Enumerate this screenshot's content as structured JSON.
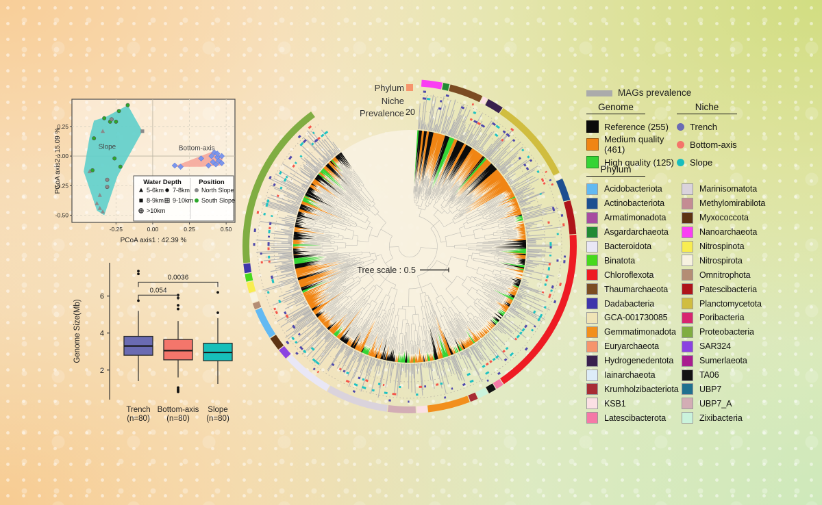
{
  "ring_labels": {
    "phylum": "Phylum",
    "niche": "Niche",
    "prevalence": "Prevalence",
    "prevalence_tick": "20",
    "marker_color": "#F6946C"
  },
  "legend_panel": {
    "mags_prevalence": {
      "label": "MAGs prevalence",
      "swatch": "#ABABAB"
    },
    "genome": {
      "title": "Genome",
      "items": [
        {
          "label": "Reference (255)",
          "color": "#0b0b0b"
        },
        {
          "label": "Medium quality (461)",
          "color": "#F08514"
        },
        {
          "label": "High quality (125)",
          "color": "#35D435"
        }
      ]
    },
    "niche": {
      "title": "Niche",
      "items": [
        {
          "label": "Trench",
          "color": "#6B6BB4"
        },
        {
          "label": "Bottom-axis",
          "color": "#F4756A"
        },
        {
          "label": "Slope",
          "color": "#19BDBD"
        }
      ]
    },
    "phylum": {
      "title": "Phylum",
      "columns": [
        [
          {
            "label": "Acidobacteriota",
            "color": "#62B9F2"
          },
          {
            "label": "Actinobacteriota",
            "color": "#1D4F90"
          },
          {
            "label": "Armatimonadota",
            "color": "#A74BA0"
          },
          {
            "label": "Asgardarchaeota",
            "color": "#218A34"
          },
          {
            "label": "Bacteroidota",
            "color": "#E9E7F6"
          },
          {
            "label": "Binatota",
            "color": "#47D91D"
          },
          {
            "label": "Chloroflexota",
            "color": "#EE1B23"
          },
          {
            "label": "Thaumarchaeota",
            "color": "#7B4C22"
          },
          {
            "label": "Dadabacteria",
            "color": "#3E35AB"
          },
          {
            "label": "GCA-001730085",
            "color": "#F0E4B6"
          },
          {
            "label": "Gemmatimonadota",
            "color": "#F28F1D"
          },
          {
            "label": "Euryarchaeota",
            "color": "#F6946C"
          },
          {
            "label": "Hydrogenedentota",
            "color": "#39204E"
          },
          {
            "label": "Iainarchaeota",
            "color": "#DDECF8"
          },
          {
            "label": "Krumholzibacteriota",
            "color": "#A72C34"
          },
          {
            "label": "KSB1",
            "color": "#FBE0E4"
          },
          {
            "label": "Latescibacterota",
            "color": "#F579A7"
          }
        ],
        [
          {
            "label": "Marinisomatota",
            "color": "#DAD3DC"
          },
          {
            "label": "Methylomirabilota",
            "color": "#C48C93"
          },
          {
            "label": "Myxococcota",
            "color": "#5D3312"
          },
          {
            "label": "Nanoarchaeota",
            "color": "#FA3EF3"
          },
          {
            "label": "Nitrospinota",
            "color": "#F8ED50"
          },
          {
            "label": "Nitrospirota",
            "color": "#F7F2E0"
          },
          {
            "label": "Omnitrophota",
            "color": "#B48D74"
          },
          {
            "label": "Patescibacteria",
            "color": "#AE141A"
          },
          {
            "label": "Planctomycetota",
            "color": "#D0BD40"
          },
          {
            "label": "Poribacteria",
            "color": "#D7256F"
          },
          {
            "label": "Proteobacteria",
            "color": "#80AD42"
          },
          {
            "label": "SAR324",
            "color": "#8B42E1"
          },
          {
            "label": "Sumerlaeota",
            "color": "#A91D8F"
          },
          {
            "label": "TA06",
            "color": "#131313"
          },
          {
            "label": "UBP7",
            "color": "#20708F"
          },
          {
            "label": "UBP7_A",
            "color": "#D3ADB5"
          },
          {
            "label": "Zixibacteria",
            "color": "#CAF3DC"
          }
        ]
      ]
    }
  },
  "chart_data": [
    {
      "id": "pcoa",
      "type": "scatter",
      "xlabel": "PCoA axis1 : 42.39 %",
      "ylabel": "PCoA axis2 : 15.09 %",
      "xlim": [
        -0.55,
        0.56
      ],
      "ylim": [
        -0.56,
        0.48
      ],
      "xticks": [
        -0.25,
        0.0,
        0.25,
        0.5
      ],
      "yticks": [
        0.25,
        0.0,
        -0.25,
        -0.5
      ],
      "hulls": [
        {
          "name": "Slope",
          "color": "#5ECFCB",
          "opacity": 0.9,
          "label_xy": [
            -0.31,
            0.06
          ],
          "points": [
            [
              -0.17,
              0.43
            ],
            [
              -0.07,
              0.21
            ],
            [
              -0.24,
              -0.17
            ],
            [
              -0.33,
              -0.5
            ],
            [
              -0.38,
              -0.46
            ],
            [
              -0.47,
              -0.13
            ],
            [
              -0.43,
              0.16
            ],
            [
              -0.4,
              0.3
            ],
            [
              -0.32,
              0.33
            ]
          ]
        },
        {
          "name": "Bottom-axis",
          "color": "#F5A79B",
          "opacity": 0.9,
          "label_xy": [
            0.3,
            0.05
          ],
          "points": [
            [
              0.14,
              -0.09
            ],
            [
              0.41,
              0.04
            ],
            [
              0.48,
              -0.01
            ],
            [
              0.46,
              -0.08
            ],
            [
              0.33,
              -0.09
            ]
          ]
        }
      ],
      "series": [
        {
          "name": "South Slope",
          "color": "#2BA82B",
          "points": [
            [
              -0.17,
              0.43,
              "c"
            ],
            [
              -0.23,
              0.38,
              "c"
            ],
            [
              -0.33,
              0.32,
              "c"
            ],
            [
              -0.29,
              0.29,
              "c"
            ],
            [
              -0.4,
              0.15,
              "c"
            ],
            [
              -0.26,
              -0.02,
              "c"
            ],
            [
              -0.22,
              -0.09,
              "c"
            ],
            [
              -0.41,
              -0.12,
              "c"
            ],
            [
              -0.25,
              0.29,
              "c"
            ]
          ]
        },
        {
          "name": "North Slope",
          "color": "#8A8A8A",
          "points": [
            [
              -0.28,
              0.31,
              "c"
            ],
            [
              -0.34,
              0.21,
              "t"
            ],
            [
              -0.31,
              -0.2,
              "c"
            ],
            [
              -0.31,
              -0.26,
              "c"
            ],
            [
              -0.36,
              -0.33,
              "t"
            ],
            [
              -0.38,
              -0.4,
              "t"
            ],
            [
              -0.36,
              -0.44,
              "t"
            ],
            [
              -0.34,
              -0.47,
              "t"
            ],
            [
              -0.43,
              -0.13,
              "t"
            ],
            [
              -0.07,
              0.21,
              "s"
            ]
          ]
        },
        {
          "name": "Bottom-axis",
          "color": "#7B96EC",
          "points": [
            [
              0.15,
              -0.08,
              "d"
            ],
            [
              0.19,
              -0.09,
              "d"
            ],
            [
              0.33,
              -0.02,
              "d"
            ],
            [
              0.4,
              0.0,
              "d"
            ],
            [
              0.42,
              0.03,
              "d"
            ],
            [
              0.44,
              -0.01,
              "d"
            ],
            [
              0.45,
              -0.04,
              "d"
            ],
            [
              0.47,
              0.0,
              "d"
            ],
            [
              0.47,
              -0.06,
              "d"
            ],
            [
              0.43,
              -0.07,
              "d"
            ],
            [
              0.38,
              -0.08,
              "d"
            ],
            [
              0.41,
              -0.05,
              "d"
            ],
            [
              0.44,
              0.02,
              "d"
            ]
          ]
        }
      ],
      "legend": {
        "water_depth": {
          "title": "Water Depth",
          "col1": [
            {
              "label": "5-6km",
              "marker": "t"
            },
            {
              "label": "8-9km",
              "marker": "s"
            },
            {
              "label": ">10km",
              "marker": "cc"
            }
          ],
          "col2": [
            {
              "label": "7-8km",
              "marker": "c"
            },
            {
              "label": "9-10km",
              "marker": "sc"
            }
          ]
        },
        "position": {
          "title": "Position",
          "items": [
            {
              "label": "North Slope",
              "color": "#8A8A8A"
            },
            {
              "label": "South Slope",
              "color": "#2BA82B"
            }
          ]
        }
      }
    },
    {
      "id": "genome-size-boxplot",
      "type": "box",
      "ylabel": "Genome Size(Mb)",
      "yticks": [
        2,
        4,
        6
      ],
      "ylim": [
        0.4,
        7.8
      ],
      "boxes": [
        {
          "label": "Trench",
          "n": "(n=80)",
          "color": "#6A6BB2",
          "q1": 2.8,
          "median": 3.3,
          "q3": 3.82,
          "lo": 1.4,
          "hi": 5.2,
          "outliers": [
            5.75,
            7.2,
            7.35
          ]
        },
        {
          "label": "Bottom-axis",
          "n": "(n=80)",
          "color": "#F4766B",
          "q1": 2.55,
          "median": 3.05,
          "q3": 3.65,
          "lo": 1.6,
          "hi": 4.65,
          "outliers": [
            5.3,
            5.5,
            5.9,
            6.05,
            1.05,
            0.97,
            0.9,
            0.82
          ]
        },
        {
          "label": "Slope",
          "n": "(n=80)",
          "color": "#17BFB9",
          "q1": 2.5,
          "median": 2.95,
          "q3": 3.45,
          "lo": 1.25,
          "hi": 4.8,
          "outliers": [
            5.1,
            6.2
          ]
        }
      ],
      "comparisons": [
        {
          "a": 0,
          "b": 1,
          "p": "0.054",
          "y": 6.05
        },
        {
          "a": 0,
          "b": 2,
          "p": "0.0036",
          "y": 6.75
        }
      ]
    },
    {
      "id": "phylogenetic-tree",
      "type": "circular_phylogenetic_tree",
      "scale_label": "Tree scale : 0.5",
      "prevalence_axis_tick": 20,
      "genome_counts": {
        "reference": 255,
        "medium_quality": 461,
        "high_quality": 125
      },
      "quality_colors": {
        "reference": "#0b0b0b",
        "medium": "#F08514",
        "high": "#35D435"
      },
      "prevalence_color": "#B3B3B3",
      "branch_color": "#BFBDB6",
      "niche_dash_colors": {
        "trench": "#4E48AC",
        "bottom_axis": "#F4564A",
        "slope": "#1FC2C2"
      },
      "rings_outward": [
        "genome quality wedges",
        "MAGs prevalence bars",
        "niche dashes",
        "phylum arcs"
      ],
      "phylum_ring": [
        {
          "phylum": "Nanoarchaeota",
          "deg": 7.5
        },
        {
          "phylum": "Asgardarchaeota",
          "deg": 2.5
        },
        {
          "phylum": "Thaumarchaeota",
          "deg": 12
        },
        {
          "phylum": "KSB1",
          "deg": 2
        },
        {
          "phylum": "Hydrogenedentota",
          "deg": 6
        },
        {
          "phylum": "Planctomycetota",
          "deg": 30
        },
        {
          "phylum": "Nitrospirota",
          "deg": 2
        },
        {
          "phylum": "Actinobacteriota",
          "deg": 8
        },
        {
          "phylum": "Patescibacteria",
          "deg": 12
        },
        {
          "phylum": "Chloroflexota",
          "deg": 60
        },
        {
          "phylum": "Latescibacterota",
          "deg": 3
        },
        {
          "phylum": "TA06",
          "deg": 3
        },
        {
          "phylum": "Zixibacteria",
          "deg": 4
        },
        {
          "phylum": "Krumholzibacteriota",
          "deg": 3
        },
        {
          "phylum": "Gemmatimonadota",
          "deg": 15
        },
        {
          "phylum": "KSB1",
          "deg": 4
        },
        {
          "phylum": "UBP7_A",
          "deg": 10
        },
        {
          "phylum": "Marinisomatota",
          "deg": 22
        },
        {
          "phylum": "Bacteroidota",
          "deg": 18
        },
        {
          "phylum": "SAR324",
          "deg": 4
        },
        {
          "phylum": "Myxococcota",
          "deg": 5
        },
        {
          "phylum": "Acidobacteriota",
          "deg": 11
        },
        {
          "phylum": "Omnitrophota",
          "deg": 2.5
        },
        {
          "phylum": "Nitrospirota",
          "deg": 3.5
        },
        {
          "phylum": "Nitrospinota",
          "deg": 4
        },
        {
          "phylum": "Binatota",
          "deg": 3
        },
        {
          "phylum": "Dadabacteria",
          "deg": 3.5
        },
        {
          "phylum": "Proteobacteria",
          "deg": 60
        }
      ]
    }
  ]
}
